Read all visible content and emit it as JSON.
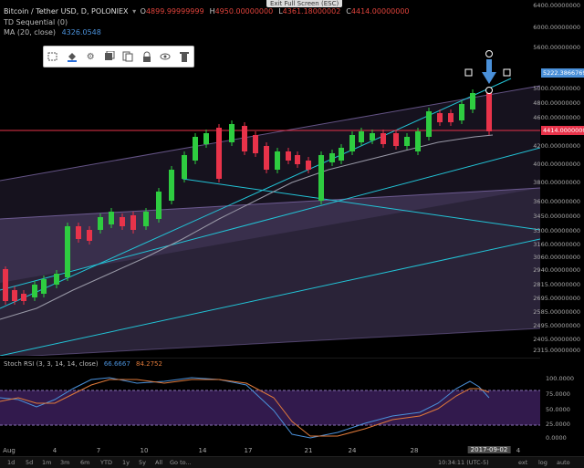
{
  "legend": {
    "title": "Bitcoin / Tether USD, D, POLONIEX",
    "ohlc": [
      {
        "k": "O",
        "v": "4899.99999999"
      },
      {
        "k": "H",
        "v": "4950.00000000"
      },
      {
        "k": "L",
        "v": "4361.18000002"
      },
      {
        "k": "C",
        "v": "4414.00000000"
      }
    ],
    "td_label": "TD Sequential (0)",
    "ma_label": "MA (20, close)",
    "ma_value": "4326.0548"
  },
  "exit_fullscreen": "Exit Full Screen (ESC)",
  "toolbar": [
    "select-icon",
    "fill-icon",
    "gear-icon",
    "template-icon",
    "clone-icon",
    "lock-icon",
    "eye-icon",
    "trash-icon"
  ],
  "price_axis": {
    "labels": [
      "6400.00000000",
      "6000.00000000",
      "5600.00000000",
      "5000.00000000",
      "4800.00000000",
      "4600.00000000",
      "4200.00000000",
      "4000.00000000",
      "3800.00000000",
      "3600.00000000",
      "3450.00000000",
      "3300.00000000",
      "3160.00000000",
      "3060.00000000",
      "2940.00000000",
      "2815.00000000",
      "2695.00000000",
      "2585.00000000",
      "2495.00000000",
      "2405.00000000",
      "2315.00000000"
    ],
    "badge_blue": "5222.38667691",
    "badge_red": "4414.00000000"
  },
  "rsi": {
    "label": "Stoch RSI (3, 3, 14, 14, close)",
    "k_value": "66.6667",
    "d_value": "84.2752",
    "axis": [
      "100.0000",
      "75.0000",
      "50.0000",
      "25.0000",
      "0.0000"
    ]
  },
  "time_axis": {
    "labels": [
      "Aug",
      "4",
      "7",
      "10",
      "14",
      "17",
      "21",
      "24",
      "28",
      "4"
    ],
    "badge": "2017-09-02"
  },
  "bottom_bar": {
    "ranges": [
      "1d",
      "5d",
      "1m",
      "3m",
      "6m",
      "YTD",
      "1y",
      "5y",
      "All"
    ],
    "goto": "Go to...",
    "clock": "10:34:11 (UTC-5)",
    "right": [
      "ext",
      "log",
      "auto"
    ]
  },
  "colors": {
    "up": "#2ecc40",
    "down": "#e8334a",
    "trend": "#22c3d6",
    "channel": "#8a73b8",
    "stoch_k": "#4a90d9",
    "stoch_d": "#e07a3a"
  }
}
